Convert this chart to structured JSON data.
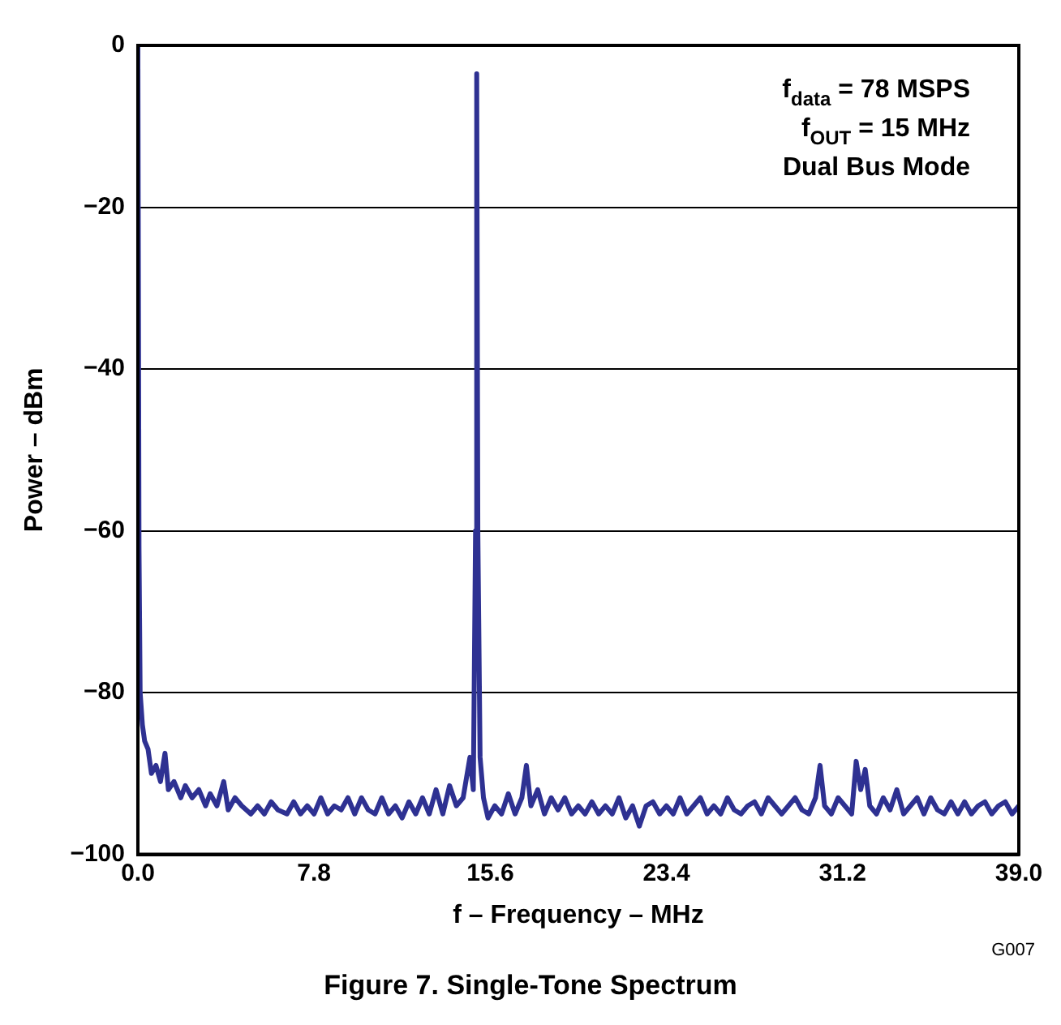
{
  "chart_data": {
    "type": "line",
    "title": "Figure 7. Single-Tone Spectrum",
    "xlabel": "f – Frequency – MHz",
    "ylabel": "Power – dBm",
    "annotations": [
      "f$_{data}$ = 78 MSPS",
      "f$_{OUT}$ = 15 MHz",
      "Dual Bus Mode",
      "G007"
    ],
    "x": [
      0,
      0.05,
      0.1,
      0.2,
      0.3,
      0.45,
      0.6,
      0.8,
      1.0,
      1.2,
      1.35,
      1.6,
      1.9,
      2.1,
      2.4,
      2.7,
      3.0,
      3.2,
      3.5,
      3.8,
      4.0,
      4.3,
      4.6,
      5.0,
      5.3,
      5.6,
      5.9,
      6.2,
      6.6,
      6.9,
      7.2,
      7.5,
      7.8,
      8.1,
      8.4,
      8.7,
      9.0,
      9.3,
      9.6,
      9.9,
      10.2,
      10.5,
      10.8,
      11.1,
      11.4,
      11.7,
      12.0,
      12.3,
      12.6,
      12.9,
      13.2,
      13.5,
      13.8,
      14.1,
      14.4,
      14.7,
      14.85,
      14.95,
      15.0,
      15.05,
      15.15,
      15.3,
      15.5,
      15.8,
      16.1,
      16.4,
      16.7,
      17.0,
      17.2,
      17.4,
      17.7,
      18.0,
      18.3,
      18.6,
      18.9,
      19.2,
      19.5,
      19.8,
      20.1,
      20.4,
      20.7,
      21.0,
      21.3,
      21.6,
      21.9,
      22.2,
      22.5,
      22.8,
      23.1,
      23.4,
      23.7,
      24.0,
      24.3,
      24.6,
      24.9,
      25.2,
      25.5,
      25.8,
      26.1,
      26.4,
      26.7,
      27.0,
      27.3,
      27.6,
      27.9,
      28.2,
      28.5,
      28.8,
      29.1,
      29.4,
      29.7,
      30.0,
      30.2,
      30.4,
      30.7,
      31.0,
      31.3,
      31.6,
      31.8,
      32.0,
      32.2,
      32.4,
      32.7,
      33.0,
      33.3,
      33.6,
      33.9,
      34.2,
      34.5,
      34.8,
      35.1,
      35.4,
      35.7,
      36.0,
      36.3,
      36.6,
      36.9,
      37.2,
      37.5,
      37.8,
      38.1,
      38.4,
      38.7,
      39.0
    ],
    "series": [
      {
        "color": "#2e3192",
        "values": [
          0,
          -62,
          -80,
          -84,
          -86,
          -87,
          -90,
          -89,
          -91,
          -87.5,
          -92,
          -91,
          -93,
          -91.5,
          -93,
          -92,
          -94,
          -92.5,
          -94,
          -91,
          -94.5,
          -93,
          -94,
          -95,
          -94,
          -95,
          -93.5,
          -94.5,
          -95,
          -93.5,
          -95,
          -94,
          -95,
          -93,
          -95,
          -94,
          -94.5,
          -93,
          -95,
          -93,
          -94.5,
          -95,
          -93,
          -95,
          -94,
          -95.5,
          -93.5,
          -95,
          -93,
          -95,
          -92,
          -95,
          -91.5,
          -94,
          -93,
          -88,
          -92,
          -60,
          -3.5,
          -60,
          -88,
          -93,
          -95.5,
          -94,
          -95,
          -92.5,
          -95,
          -93,
          -89,
          -94,
          -92,
          -95,
          -93,
          -94.5,
          -93,
          -95,
          -94,
          -95,
          -93.5,
          -95,
          -94,
          -95,
          -93,
          -95.5,
          -94,
          -96.5,
          -94,
          -93.5,
          -95,
          -94,
          -95,
          -93,
          -95,
          -94,
          -93,
          -95,
          -94,
          -95,
          -93,
          -94.5,
          -95,
          -94,
          -93.5,
          -95,
          -93,
          -94,
          -95,
          -94,
          -93,
          -94.5,
          -95,
          -93,
          -89,
          -94,
          -95,
          -93,
          -94,
          -95,
          -88.5,
          -92,
          -89.5,
          -94,
          -95,
          -93,
          -94.5,
          -92,
          -95,
          -94,
          -93,
          -95,
          -93,
          -94.5,
          -95,
          -93.5,
          -95,
          -93.5,
          -95,
          -94,
          -93.5,
          -95,
          -94,
          -93.5,
          -95,
          -94
        ]
      }
    ],
    "xlim": [
      0,
      39
    ],
    "ylim": [
      -100,
      0
    ],
    "xticks": [
      {
        "value": 0,
        "label": "0.0"
      },
      7.8,
      15.6,
      23.4,
      31.2,
      {
        "value": 39,
        "label": "39.0"
      }
    ],
    "yticks": [
      {
        "value": -100,
        "label": "−100"
      },
      {
        "value": -80,
        "label": "−80"
      },
      {
        "value": -60,
        "label": "−60"
      },
      {
        "value": -40,
        "label": "−40"
      },
      {
        "value": -20,
        "label": "−20"
      },
      0
    ],
    "grid": "y"
  }
}
